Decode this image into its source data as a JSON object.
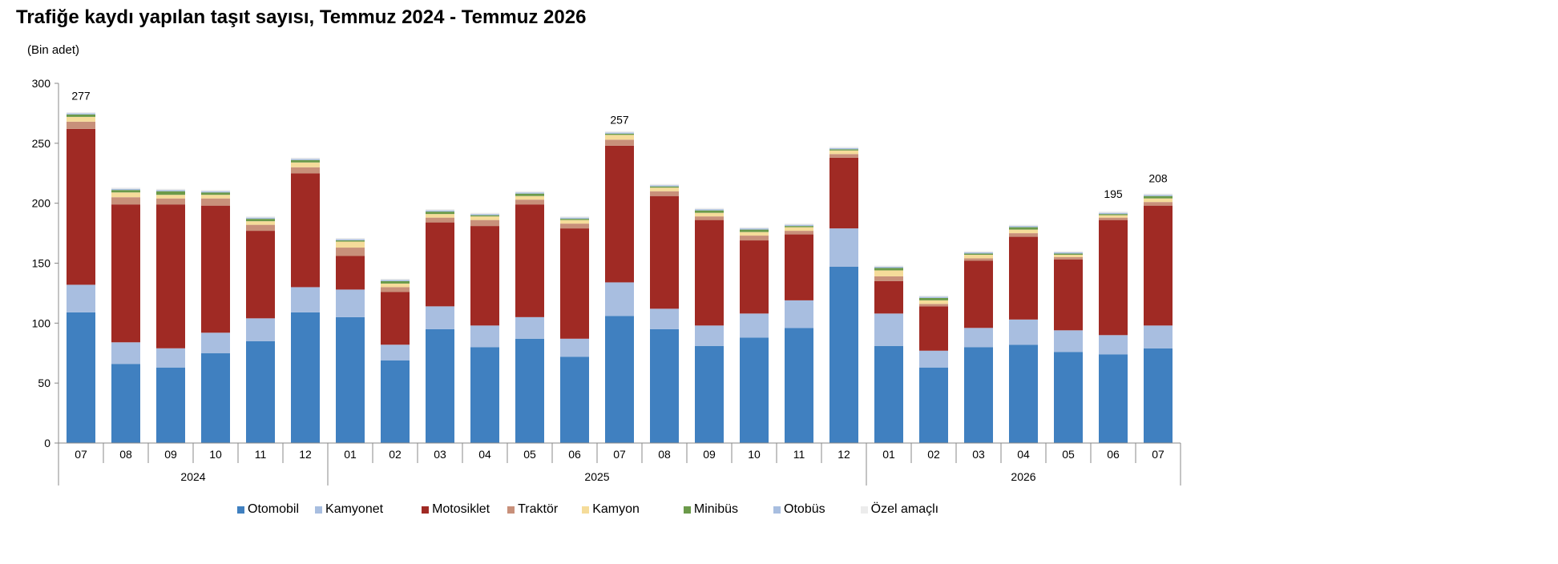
{
  "chart_data": {
    "type": "bar",
    "stacked": true,
    "title": "Trafiğe kaydı yapılan taşıt sayısı, Temmuz 2024 - Temmuz 2026",
    "unit_label": "(Bin adet)",
    "categories": [
      "07",
      "08",
      "09",
      "10",
      "11",
      "12",
      "01",
      "02",
      "03",
      "04",
      "05",
      "06",
      "07",
      "08",
      "09",
      "10",
      "11",
      "12",
      "01",
      "02",
      "03",
      "04",
      "05",
      "06",
      "07"
    ],
    "year_groups": [
      {
        "label": "2024",
        "start": 0,
        "end": 5
      },
      {
        "label": "2025",
        "start": 6,
        "end": 17
      },
      {
        "label": "2026",
        "start": 18,
        "end": 24
      }
    ],
    "yticks": [
      0,
      50,
      100,
      150,
      200,
      250,
      300
    ],
    "ylim": [
      0,
      300
    ],
    "legend_position": "bottom",
    "series": [
      {
        "name": "Otomobil",
        "color": "#4080c0",
        "values": [
          109,
          66,
          63,
          75,
          85,
          109,
          105,
          69,
          95,
          80,
          87,
          72,
          106,
          95,
          81,
          88,
          96,
          147,
          81,
          63,
          80,
          82,
          76,
          74,
          79
        ]
      },
      {
        "name": "Kamyonet",
        "color": "#a8bee0",
        "values": [
          23,
          18,
          16,
          17,
          19,
          21,
          23,
          13,
          19,
          18,
          18,
          15,
          28,
          17,
          17,
          20,
          23,
          32,
          27,
          14,
          16,
          21,
          18,
          16,
          19
        ]
      },
      {
        "name": "Motosiklet",
        "color": "#a02a24",
        "values": [
          130,
          115,
          120,
          106,
          73,
          95,
          28,
          44,
          70,
          83,
          94,
          92,
          114,
          94,
          88,
          61,
          55,
          59,
          27,
          37,
          56,
          69,
          59,
          96,
          100
        ]
      },
      {
        "name": "Traktör",
        "color": "#c8907a",
        "values": [
          6,
          6,
          5,
          6,
          5,
          5,
          7,
          4,
          4,
          5,
          4,
          4,
          5,
          4,
          3,
          4,
          3,
          3,
          4,
          2,
          2,
          3,
          2,
          2,
          3
        ]
      },
      {
        "name": "Kamyon",
        "color": "#f5dc9a",
        "values": [
          4,
          4,
          3,
          3,
          3,
          4,
          5,
          3,
          3,
          3,
          3,
          3,
          4,
          3,
          3,
          3,
          3,
          3,
          5,
          3,
          3,
          3,
          2,
          2,
          3
        ]
      },
      {
        "name": "Minibüs",
        "color": "#6b9a4a",
        "values": [
          2,
          2,
          3,
          2,
          2,
          2,
          1,
          2,
          2,
          1,
          2,
          1,
          1,
          1,
          2,
          2,
          1,
          1,
          2,
          2,
          1,
          2,
          1,
          1,
          2
        ]
      },
      {
        "name": "Otobüs",
        "color": "#a8bee0",
        "values": [
          1,
          1,
          1,
          1,
          1,
          1,
          1,
          1,
          1,
          1,
          1,
          1,
          1,
          1,
          1,
          1,
          1,
          1,
          1,
          1,
          1,
          1,
          1,
          1,
          1
        ]
      },
      {
        "name": "Özel amaçlı",
        "color": "#ececec",
        "values": [
          1,
          1,
          1,
          1,
          1,
          1,
          1,
          1,
          1,
          1,
          1,
          1,
          1,
          1,
          1,
          1,
          1,
          1,
          1,
          1,
          1,
          1,
          1,
          1,
          1
        ]
      }
    ],
    "annotations": [
      {
        "index": 0,
        "label": "277",
        "value": 277
      },
      {
        "index": 12,
        "label": "257",
        "value": 257
      },
      {
        "index": 23,
        "label": "195",
        "value": 195
      },
      {
        "index": 24,
        "label": "208",
        "value": 208
      }
    ]
  }
}
